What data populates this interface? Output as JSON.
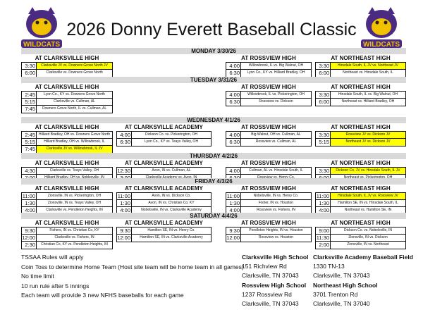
{
  "title": "2026 Donny Everett Baseball Classic",
  "logo_text": "WILDCATS",
  "colors": {
    "highlight": "#ffff00",
    "daybar": "#d9d9d9",
    "logo_purple": "#4b2a82",
    "logo_gold": "#f2c200"
  },
  "days": [
    {
      "label": "MONDAY 3/30/26",
      "venues": [
        {
          "name": "AT CLARKSVILLE HIGH",
          "games": [
            {
              "time": "3:30",
              "game": "Clarksville JV vs. Downers Grove North JV",
              "hl": true
            },
            {
              "time": "6:00",
              "game": "Clarksville vs. Downers Grove North"
            }
          ]
        },
        null,
        {
          "name": "AT ROSSVIEW HIGH",
          "games": [
            {
              "time": "4:00",
              "game": "Willowbrook, IL vs. Big Walnut, OH"
            },
            {
              "time": "6:30",
              "game": "Lyon Co., KY vs. Hilliard Bradley, OH"
            }
          ]
        },
        {
          "name": "AT  NORTHEAST HIGH",
          "games": [
            {
              "time": "3:30",
              "game": "Hinsdale South, IL JV vs. Northeast JV",
              "hl": true
            },
            {
              "time": "6:00",
              "game": "Northeast vs. Hinsdale South, IL"
            }
          ]
        }
      ]
    },
    {
      "label": "TUESDAY 3/31/26",
      "venues": [
        {
          "name": "AT CLARKSVILLE HIGH",
          "games": [
            {
              "time": "2:45",
              "game": "Lyon Co., KY vs. Downers Grove North"
            },
            {
              "time": "5:15",
              "game": "Clarksville vs. Cullman, AL"
            },
            {
              "time": "7:45",
              "game": "Downers Grove North, IL vs. Cullman, AL"
            }
          ]
        },
        null,
        {
          "name": "AT ROSSVIEW HIGH",
          "games": [
            {
              "time": "4:00",
              "game": "Willowbrook, IL vs. Pickerington, OH"
            },
            {
              "time": "6:30",
              "game": "Rossview vs. Dickson"
            }
          ]
        },
        {
          "name": "AT  NORTHEAST HIGH",
          "games": [
            {
              "time": "3:30",
              "game": "Hinsdale South, IL vs. Big Walnut, OH"
            },
            {
              "time": "6:00",
              "game": "Northeast vs. Hilliard Bradley, OH"
            }
          ]
        }
      ]
    },
    {
      "label": "WEDNESDAY 4/1/26",
      "venues": [
        {
          "name": "AT CLARKSVILLE HIGH",
          "games": [
            {
              "time": "2:45",
              "game": "Hilliard Bradley, OH vs. Downers Grove North"
            },
            {
              "time": "5:15",
              "game": "Hilliard Bradley, OH vs. Willowbrook, IL"
            },
            {
              "time": "7:45",
              "game": "Clarksville JV vs. Willowbrook, IL JV",
              "hl": true
            }
          ]
        },
        {
          "name": "AT CLARKSVILLE ACADEMY",
          "games": [
            {
              "time": "4:00",
              "game": "Dickson Co. vs. Pickerington, OH"
            },
            {
              "time": "6:30",
              "game": "Lyon Co., KY vs. Teays Valley, OH"
            }
          ]
        },
        {
          "name": "AT ROSSVIEW HIGH",
          "games": [
            {
              "time": "4:00",
              "game": "Big Walnut, OH vs. Cullman, AL"
            },
            {
              "time": "6:30",
              "game": "Rossview vs. Cullman, AL"
            }
          ]
        },
        {
          "name": "AT  NORTHEAST HIGH",
          "games": [
            {
              "time": "3:30",
              "game": "Rossview JV vs. Dickson JV",
              "hl": true
            },
            {
              "time": "5:15",
              "game": "Northeast JV vs. Dickson JV",
              "hl": true
            }
          ]
        }
      ]
    },
    {
      "label": "THURSDAY 4/2/26",
      "venues": [
        {
          "name": "AT CLARKSVILLE HIGH",
          "games": [
            {
              "time": "4:30",
              "game": "Clarksville vs. Teays Valley, OH"
            },
            {
              "time": "7:00",
              "game": "Hilliard Bradley, OH vs. Noblesville, IN"
            }
          ]
        },
        {
          "name": "AT CLARKSVILLE ACADEMY",
          "games": [
            {
              "time": "12:30",
              "game": "Avon, IN vs. Cullman, AL"
            },
            {
              "time": "3:00",
              "game": "Clarksville Academy vs. Avon, IN"
            }
          ]
        },
        {
          "name": "AT ROSSVIEW HIGH",
          "games": [
            {
              "time": "4:00",
              "game": "Cullman, AL vs. Hinsdale South, IL"
            },
            {
              "time": "6:30",
              "game": "Rossview vs. Henry Co."
            }
          ]
        },
        {
          "name": "AT  NORTHEAST HIGH",
          "games": [
            {
              "time": "3:30",
              "game": "Dickson Co. JV vs. Hinsdale South, IL JV",
              "hl": true
            },
            {
              "time": "6:00",
              "game": "Northeast vs. Pickerington, OH"
            }
          ]
        }
      ]
    },
    {
      "label": "FRIDAY 4/3/26",
      "venues": [
        {
          "name": "AT CLARKSVILLE HIGH",
          "games": [
            {
              "time": "11:00",
              "game": "Zionsville, IN vs. Pickerington, OH"
            },
            {
              "time": "1:30",
              "game": "Zionsville, IN vs. Teays Valley, OH"
            },
            {
              "time": "4:00",
              "game": "Clarksville vs. Pendleton Heights, IN"
            }
          ]
        },
        {
          "name": "AT CLARKSVILLE ACADEMY",
          "games": [
            {
              "time": "11:00",
              "game": "Avon, IN vs. Dickson Co."
            },
            {
              "time": "1:30",
              "game": "Avon, IN vs. Christian Co, KY"
            },
            {
              "time": "4:00",
              "game": "Nobelsville, IN vs. Clarksville Academy"
            }
          ]
        },
        {
          "name": "AT ROSSVIEW HIGH",
          "games": [
            {
              "time": "11:00",
              "game": "Nobelsville, IN vs. Henry Co."
            },
            {
              "time": "1:30",
              "game": "Fisher, IN vs. Houston"
            },
            {
              "time": "4:00",
              "game": "Rossview vs. Fishers, IN"
            }
          ]
        },
        {
          "name": "AT  NORTHEAST HIGH",
          "games": [
            {
              "time": "11:00",
              "game": "Hinsdale South, IL JV vs. Rossview JV",
              "hl": true
            },
            {
              "time": "1:30",
              "game": "Hamilton SE, IN vs. Hinsdale South, IL"
            },
            {
              "time": "4:00",
              "game": "Northeast vs. Hamilton SE, IN"
            }
          ]
        }
      ]
    },
    {
      "label": "SATURDAY 4/4/26",
      "venues": [
        {
          "name": "AT CLARKSVILLE HIGH",
          "games": [
            {
              "time": "9:30",
              "game": "Fishers, IN vs. Christian Co, KY"
            },
            {
              "time": "12:00",
              "game": "Clarksville vs. Fishers, IN"
            },
            {
              "time": "2:30",
              "game": "Christian Co, KY vs. Pendleton Heights, IN"
            }
          ]
        },
        {
          "name": "AT CLARKSVILLE ACADEMY",
          "games": [
            {
              "time": "9:30",
              "game": "Hamilton SE, IN vs. Henry Co."
            },
            {
              "time": "12:00",
              "game": "Hamilton SE, IN vs. Clarksville Academy"
            }
          ]
        },
        {
          "name": "AT ROSSVIEW HIGH",
          "games": [
            {
              "time": "9:30",
              "game": "Pendleton Heights, IN vs. Houston"
            },
            {
              "time": "12:00",
              "game": "Rossview vs. Houston"
            }
          ]
        },
        {
          "name": "AT  NORTHEAST HIGH",
          "games": [
            {
              "time": "9:00",
              "game": "Dickson Co. vs. Nobelsville, IN"
            },
            {
              "time": "11:30",
              "game": "Zionsville, IN vs. Dickson"
            },
            {
              "time": "2:00",
              "game": "Zionsville, IN vs. Northeast"
            }
          ]
        }
      ]
    }
  ],
  "notes": [
    "TSSAA Rules will apply",
    "Coin Toss to determine Home Team (Host site team will be home team in all games)",
    "No time limit",
    "10 run rule after 5 innings",
    "Each team will provide 3 new NFHS baseballs for each game"
  ],
  "addresses": [
    {
      "name": "Clarksville High School",
      "line1": "151 Richview Rd",
      "line2": "Clarksville, TN 37043"
    },
    {
      "name": "Clarksville Academy Baseball Field",
      "line1": "1330 TN-13",
      "line2": "Clarksville, TN 37043"
    },
    {
      "name": "Rossview High School",
      "line1": "1237 Rossview Rd",
      "line2": "Clarksville, TN 37043"
    },
    {
      "name": "Northeast High School",
      "line1": "3701 Trenton Rd",
      "line2": "Clarksville, TN 37040"
    }
  ]
}
